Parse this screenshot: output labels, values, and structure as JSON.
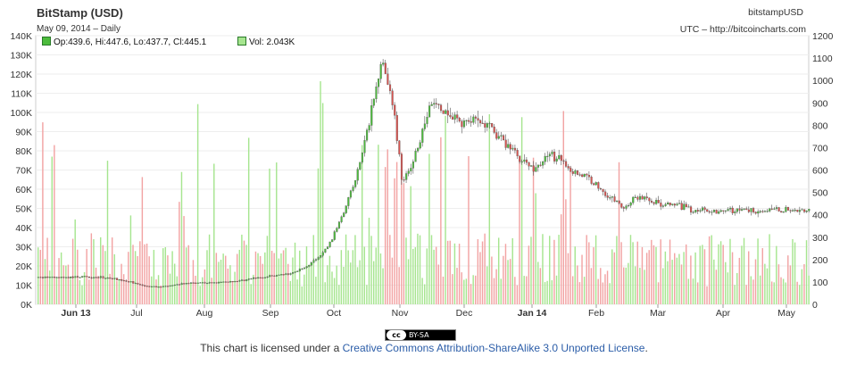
{
  "header": {
    "title": "BitStamp (USD)",
    "subtitle": "May 09, 2014  –  Daily",
    "symbol": "bitstampUSD",
    "source": "UTC – http://bitcoincharts.com"
  },
  "legend": {
    "ohlc": "Op:439.6, Hi:447.6, Lo:437.7, Cl:445.1",
    "vol": "Vol: 2.043K",
    "ohlc_color": "#4cbb3c",
    "vol_color": "#a6e58f"
  },
  "chart_data": {
    "type": "bar",
    "x_ticks": [
      "Jun 13",
      "Jul",
      "Aug",
      "Sep",
      "Oct",
      "Nov",
      "Dec",
      "Jan 14",
      "Feb",
      "Mar",
      "Apr",
      "May"
    ],
    "y_left_ticks": [
      "0K",
      "10K",
      "20K",
      "30K",
      "40K",
      "50K",
      "60K",
      "70K",
      "80K",
      "90K",
      "100K",
      "110K",
      "120K",
      "130K",
      "140K"
    ],
    "y_right_ticks": [
      "0",
      "100",
      "200",
      "300",
      "400",
      "500",
      "600",
      "700",
      "800",
      "900",
      "1000",
      "1100",
      "1200"
    ],
    "ylim_left": [
      0,
      140000
    ],
    "ylim_right": [
      0,
      1200
    ],
    "up_color": "#4cbb3c",
    "down_color": "#d9534f",
    "price_path": [
      [
        0,
        120
      ],
      [
        30,
        120
      ],
      [
        50,
        124
      ],
      [
        80,
        118
      ],
      [
        100,
        104
      ],
      [
        120,
        80
      ],
      [
        135,
        78
      ],
      [
        150,
        84
      ],
      [
        165,
        94
      ],
      [
        180,
        98
      ],
      [
        195,
        95
      ],
      [
        210,
        100
      ],
      [
        225,
        105
      ],
      [
        240,
        115
      ],
      [
        255,
        123
      ],
      [
        270,
        130
      ],
      [
        285,
        140
      ],
      [
        300,
        170
      ],
      [
        315,
        210
      ],
      [
        328,
        280
      ],
      [
        342,
        420
      ],
      [
        356,
        560
      ],
      [
        368,
        760
      ],
      [
        378,
        950
      ],
      [
        383,
        1100
      ],
      [
        388,
        1050
      ],
      [
        393,
        980
      ],
      [
        398,
        900
      ],
      [
        403,
        700
      ],
      [
        408,
        550
      ],
      [
        414,
        580
      ],
      [
        420,
        650
      ],
      [
        426,
        720
      ],
      [
        432,
        800
      ],
      [
        438,
        870
      ],
      [
        444,
        900
      ],
      [
        450,
        860
      ],
      [
        460,
        840
      ],
      [
        470,
        820
      ],
      [
        480,
        810
      ],
      [
        490,
        820
      ],
      [
        500,
        800
      ],
      [
        510,
        780
      ],
      [
        520,
        730
      ],
      [
        530,
        700
      ],
      [
        540,
        650
      ],
      [
        550,
        620
      ],
      [
        560,
        610
      ],
      [
        566,
        650
      ],
      [
        572,
        680
      ],
      [
        578,
        650
      ],
      [
        584,
        640
      ],
      [
        590,
        630
      ],
      [
        596,
        600
      ],
      [
        602,
        590
      ],
      [
        610,
        575
      ],
      [
        618,
        560
      ],
      [
        626,
        530
      ],
      [
        634,
        500
      ],
      [
        642,
        470
      ],
      [
        650,
        455
      ],
      [
        655,
        430
      ],
      [
        660,
        440
      ],
      [
        666,
        470
      ],
      [
        672,
        480
      ],
      [
        680,
        470
      ],
      [
        690,
        460
      ],
      [
        700,
        440
      ],
      [
        708,
        445
      ],
      [
        716,
        440
      ],
      [
        724,
        430
      ],
      [
        736,
        420
      ]
    ],
    "volume_note": "volume bars in the lower half, green for up days and red for down days"
  }
}
